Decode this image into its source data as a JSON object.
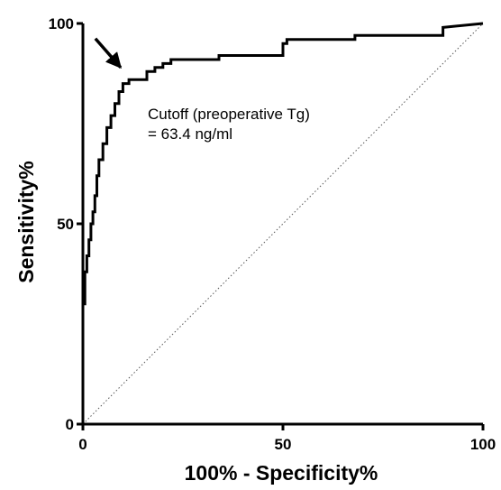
{
  "chart_data": {
    "type": "line",
    "title": "",
    "xlabel": "100% - Specificity%",
    "ylabel": "Sensitivity%",
    "xlim": [
      0,
      100
    ],
    "ylim": [
      0,
      100
    ],
    "xticks": [
      0,
      50,
      100
    ],
    "yticks": [
      0,
      50,
      100
    ],
    "xtick_labels": [
      "0",
      "50",
      "100"
    ],
    "ytick_labels": [
      "0",
      "50",
      "100"
    ],
    "grid": false,
    "legend": "none",
    "annotation": {
      "lines": [
        "Cutoff (preoperative Tg)",
        "= 63.4 ng/ml"
      ],
      "arrow_target": {
        "x": 11,
        "y": 87
      }
    },
    "series": [
      {
        "style": "solid-step",
        "x": [
          0,
          0,
          0.5,
          0.5,
          1,
          1,
          1.5,
          1.5,
          2,
          2,
          2.5,
          2.5,
          3,
          3,
          3.5,
          3.5,
          4,
          4,
          5,
          5,
          6,
          6,
          7,
          7,
          8,
          8,
          9,
          9,
          10,
          10,
          11.5,
          11.5,
          13,
          13,
          16,
          16,
          18,
          18,
          20,
          20,
          22,
          22,
          34,
          34,
          50,
          50,
          51,
          51,
          68,
          68,
          90,
          90,
          100
        ],
        "y": [
          0,
          30,
          30,
          38,
          38,
          42,
          42,
          46,
          46,
          50,
          50,
          53,
          53,
          57,
          57,
          62,
          62,
          66,
          66,
          70,
          70,
          74,
          74,
          77,
          77,
          80,
          80,
          83,
          83,
          85,
          85,
          86,
          86,
          86,
          86,
          88,
          88,
          89,
          89,
          90,
          90,
          91,
          91,
          92,
          92,
          95,
          95,
          96,
          96,
          97,
          97,
          99,
          100
        ]
      },
      {
        "style": "dotted-diagonal",
        "x": [
          0,
          100
        ],
        "y": [
          0,
          100
        ]
      }
    ]
  }
}
